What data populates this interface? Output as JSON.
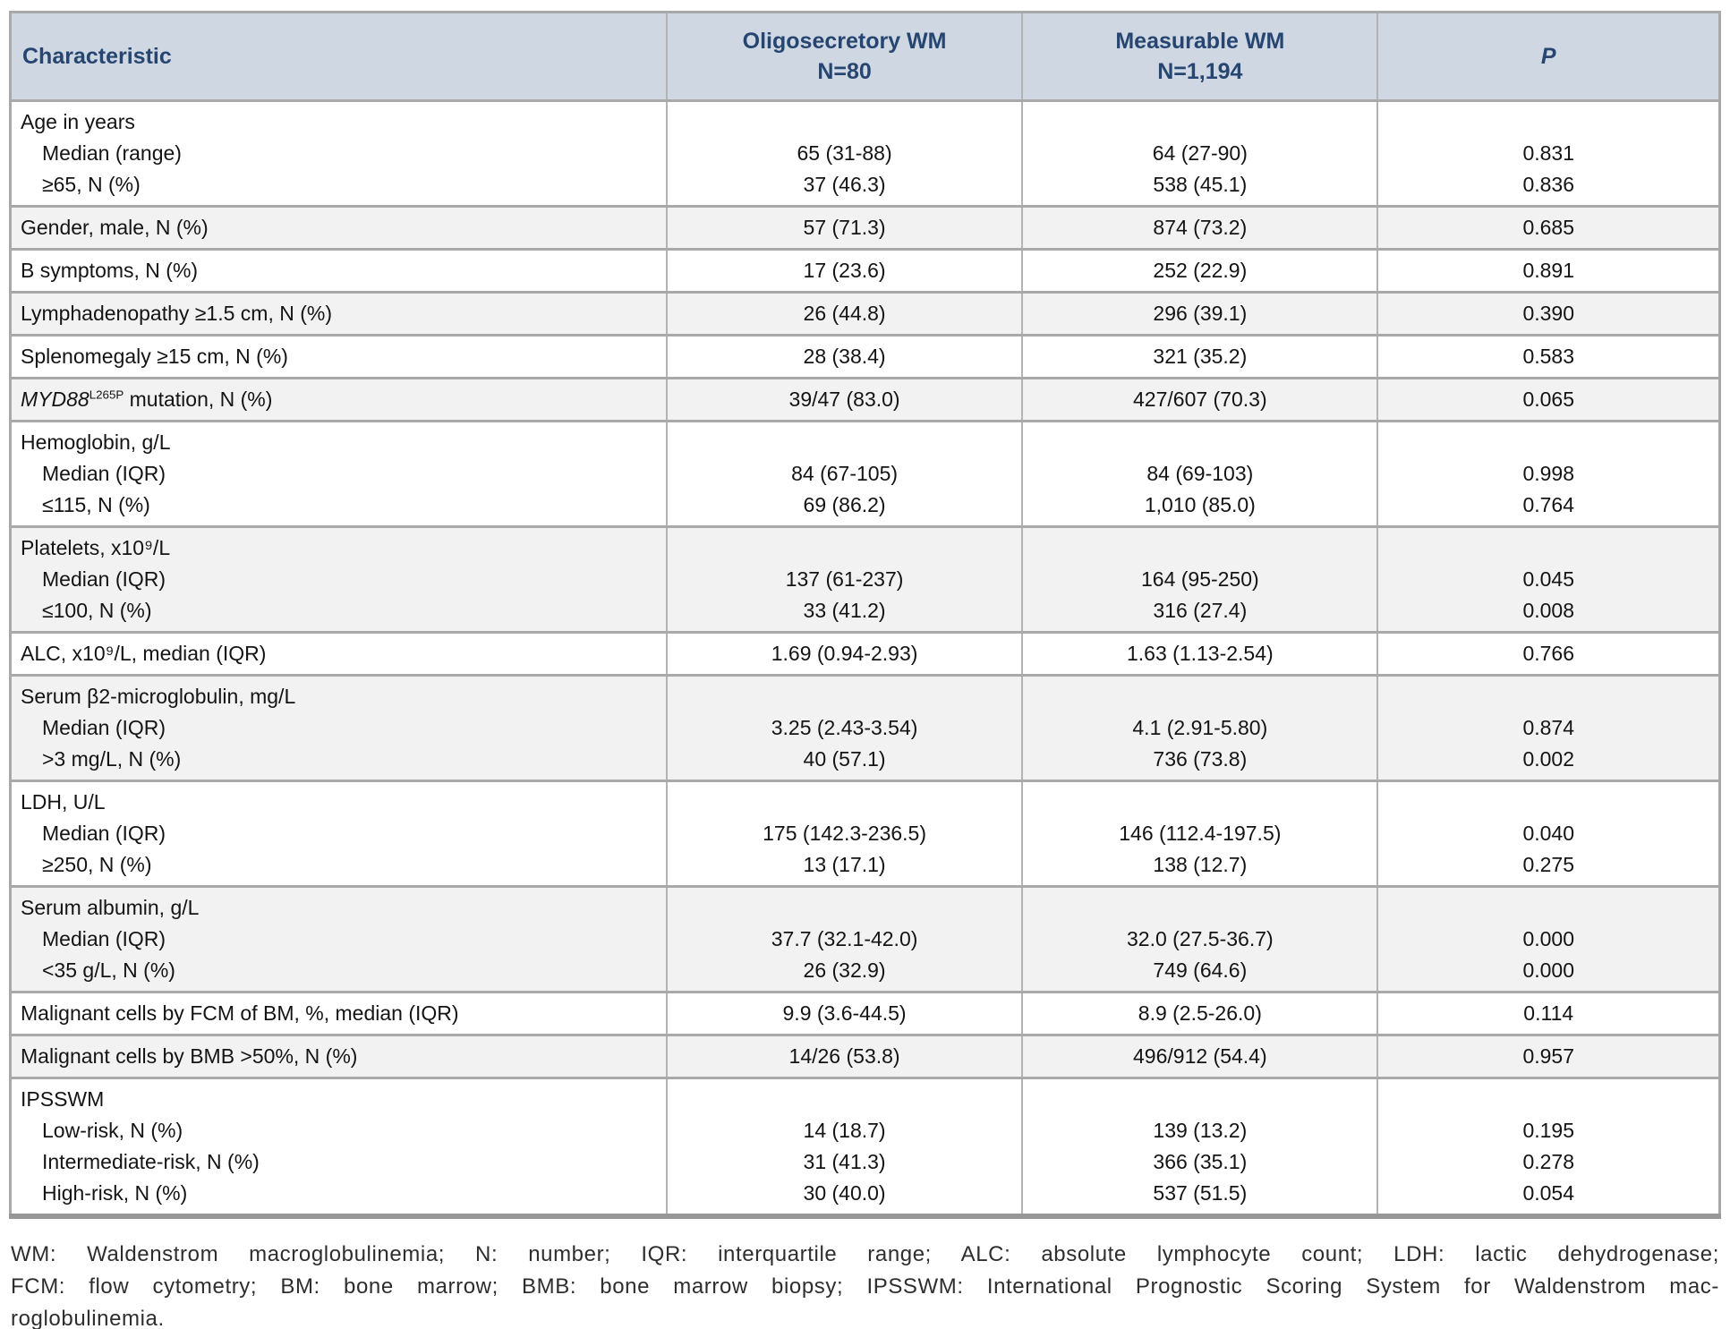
{
  "header": {
    "characteristic": "Characteristic",
    "col_oligo": {
      "title": "Oligosecretory WM",
      "n": "N=80"
    },
    "col_measurable": {
      "title": "Measurable WM",
      "n": "N=1,194"
    },
    "p": "P"
  },
  "colors": {
    "header_bg": "#cfd8e2",
    "header_text": "#264571",
    "stripe_bg": "#f2f2f2",
    "border": "#a9a9a9"
  },
  "groups": [
    {
      "striped": false,
      "label_lines": [
        {
          "indent": 0,
          "segments": [
            {
              "t": "Age in years"
            }
          ]
        },
        {
          "indent": 1,
          "segments": [
            {
              "t": "Median (range)"
            }
          ]
        },
        {
          "indent": 1,
          "segments": [
            {
              "t": "≥65, N (%)"
            }
          ]
        }
      ],
      "oligosecretory": [
        "",
        "65 (31-88)",
        "37 (46.3)"
      ],
      "measurable": [
        "",
        "64 (27-90)",
        "538 (45.1)"
      ],
      "p": [
        "",
        "0.831",
        "0.836"
      ]
    },
    {
      "striped": true,
      "label_lines": [
        {
          "indent": 0,
          "segments": [
            {
              "t": "Gender, male, N (%)"
            }
          ]
        }
      ],
      "oligosecretory": [
        "57 (71.3)"
      ],
      "measurable": [
        "874 (73.2)"
      ],
      "p": [
        "0.685"
      ]
    },
    {
      "striped": false,
      "label_lines": [
        {
          "indent": 0,
          "segments": [
            {
              "t": "B symptoms, N (%)"
            }
          ]
        }
      ],
      "oligosecretory": [
        "17 (23.6)"
      ],
      "measurable": [
        "252 (22.9)"
      ],
      "p": [
        "0.891"
      ]
    },
    {
      "striped": true,
      "label_lines": [
        {
          "indent": 0,
          "segments": [
            {
              "t": "Lymphadenopathy ≥1.5 cm, N (%)"
            }
          ]
        }
      ],
      "oligosecretory": [
        "26 (44.8)"
      ],
      "measurable": [
        "296 (39.1)"
      ],
      "p": [
        "0.390"
      ]
    },
    {
      "striped": false,
      "label_lines": [
        {
          "indent": 0,
          "segments": [
            {
              "t": "Splenomegaly ≥15 cm, N (%)"
            }
          ]
        }
      ],
      "oligosecretory": [
        "28 (38.4)"
      ],
      "measurable": [
        "321 (35.2)"
      ],
      "p": [
        "0.583"
      ]
    },
    {
      "striped": true,
      "label_lines": [
        {
          "indent": 0,
          "segments": [
            {
              "t": "MYD88",
              "style": "italic"
            },
            {
              "t": "L265P",
              "style": "sup"
            },
            {
              "t": " mutation, N (%)"
            }
          ]
        }
      ],
      "oligosecretory": [
        "39/47 (83.0)"
      ],
      "measurable": [
        "427/607 (70.3)"
      ],
      "p": [
        "0.065"
      ]
    },
    {
      "striped": false,
      "label_lines": [
        {
          "indent": 0,
          "segments": [
            {
              "t": "Hemoglobin, g/L"
            }
          ]
        },
        {
          "indent": 1,
          "segments": [
            {
              "t": "Median (IQR)"
            }
          ]
        },
        {
          "indent": 1,
          "segments": [
            {
              "t": "≤115, N (%)"
            }
          ]
        }
      ],
      "oligosecretory": [
        "",
        "84 (67-105)",
        "69 (86.2)"
      ],
      "measurable": [
        "",
        "84 (69-103)",
        "1,010 (85.0)"
      ],
      "p": [
        "",
        "0.998",
        "0.764"
      ]
    },
    {
      "striped": true,
      "label_lines": [
        {
          "indent": 0,
          "segments": [
            {
              "t": "Platelets, x10⁹/L"
            }
          ]
        },
        {
          "indent": 1,
          "segments": [
            {
              "t": "Median (IQR)"
            }
          ]
        },
        {
          "indent": 1,
          "segments": [
            {
              "t": "≤100, N (%)"
            }
          ]
        }
      ],
      "oligosecretory": [
        "",
        "137 (61-237)",
        "33 (41.2)"
      ],
      "measurable": [
        "",
        "164 (95-250)",
        "316 (27.4)"
      ],
      "p": [
        "",
        "0.045",
        "0.008"
      ]
    },
    {
      "striped": false,
      "label_lines": [
        {
          "indent": 0,
          "segments": [
            {
              "t": "ALC, x10⁹/L, median (IQR)"
            }
          ]
        }
      ],
      "oligosecretory": [
        "1.69 (0.94-2.93)"
      ],
      "measurable": [
        "1.63 (1.13-2.54)"
      ],
      "p": [
        "0.766"
      ]
    },
    {
      "striped": true,
      "label_lines": [
        {
          "indent": 0,
          "segments": [
            {
              "t": "Serum β2-microglobulin, mg/L"
            }
          ]
        },
        {
          "indent": 1,
          "segments": [
            {
              "t": "Median (IQR)"
            }
          ]
        },
        {
          "indent": 1,
          "segments": [
            {
              "t": ">3 mg/L, N (%)"
            }
          ]
        }
      ],
      "oligosecretory": [
        "",
        "3.25 (2.43-3.54)",
        "40 (57.1)"
      ],
      "measurable": [
        "",
        "4.1 (2.91-5.80)",
        "736 (73.8)"
      ],
      "p": [
        "",
        "0.874",
        "0.002"
      ]
    },
    {
      "striped": false,
      "label_lines": [
        {
          "indent": 0,
          "segments": [
            {
              "t": "LDH, U/L"
            }
          ]
        },
        {
          "indent": 1,
          "segments": [
            {
              "t": "Median (IQR)"
            }
          ]
        },
        {
          "indent": 1,
          "segments": [
            {
              "t": "≥250, N (%)"
            }
          ]
        }
      ],
      "oligosecretory": [
        "",
        "175 (142.3-236.5)",
        "13 (17.1)"
      ],
      "measurable": [
        "",
        "146 (112.4-197.5)",
        "138 (12.7)"
      ],
      "p": [
        "",
        "0.040",
        "0.275"
      ]
    },
    {
      "striped": true,
      "label_lines": [
        {
          "indent": 0,
          "segments": [
            {
              "t": "Serum albumin, g/L"
            }
          ]
        },
        {
          "indent": 1,
          "segments": [
            {
              "t": "Median (IQR)"
            }
          ]
        },
        {
          "indent": 1,
          "segments": [
            {
              "t": "<35 g/L, N (%)"
            }
          ]
        }
      ],
      "oligosecretory": [
        "",
        "37.7 (32.1-42.0)",
        "26 (32.9)"
      ],
      "measurable": [
        "",
        "32.0 (27.5-36.7)",
        "749 (64.6)"
      ],
      "p": [
        "",
        "0.000",
        "0.000"
      ]
    },
    {
      "striped": false,
      "label_lines": [
        {
          "indent": 0,
          "segments": [
            {
              "t": "Malignant cells by FCM of BM, %, median (IQR)"
            }
          ]
        }
      ],
      "oligosecretory": [
        "9.9 (3.6-44.5)"
      ],
      "measurable": [
        "8.9 (2.5-26.0)"
      ],
      "p": [
        "0.114"
      ]
    },
    {
      "striped": true,
      "label_lines": [
        {
          "indent": 0,
          "segments": [
            {
              "t": "Malignant cells by BMB >50%, N (%)"
            }
          ]
        }
      ],
      "oligosecretory": [
        "14/26 (53.8)"
      ],
      "measurable": [
        "496/912 (54.4)"
      ],
      "p": [
        "0.957"
      ]
    },
    {
      "striped": false,
      "label_lines": [
        {
          "indent": 0,
          "segments": [
            {
              "t": "IPSSWM"
            }
          ]
        },
        {
          "indent": 1,
          "segments": [
            {
              "t": "Low-risk, N (%)"
            }
          ]
        },
        {
          "indent": 1,
          "segments": [
            {
              "t": "Intermediate-risk, N (%)"
            }
          ]
        },
        {
          "indent": 1,
          "segments": [
            {
              "t": "High-risk, N (%)"
            }
          ]
        }
      ],
      "oligosecretory": [
        "",
        "14 (18.7)",
        "31 (41.3)",
        "30 (40.0)"
      ],
      "measurable": [
        "",
        "139 (13.2)",
        "366 (35.1)",
        "537 (51.5)"
      ],
      "p": [
        "",
        "0.195",
        "0.278",
        "0.054"
      ]
    }
  ],
  "footnote": {
    "lines": [
      "WM: Waldenstrom macroglobulinemia; N: number;  IQR: interquartile range; ALC: absolute lymphocyte count; LDH: lactic dehydrogenase;",
      "FCM: flow cytometry; BM: bone marrow; BMB: bone marrow biopsy; IPSSWM: International Prognostic Scoring System for Waldenstrom mac-",
      "roglobulinemia."
    ]
  }
}
